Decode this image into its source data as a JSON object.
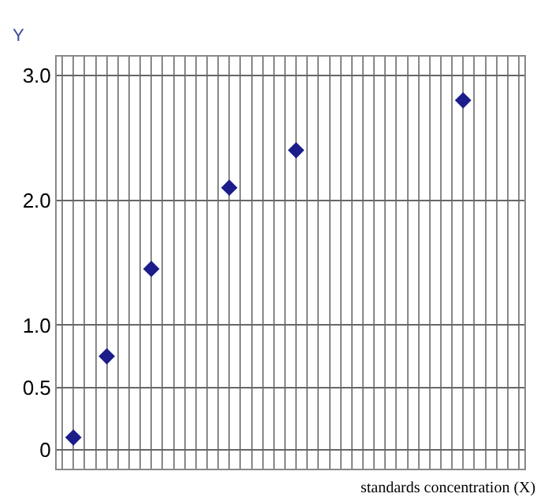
{
  "chart_data": {
    "type": "scatter",
    "xlabel": "standards concentration (X)",
    "ylabel": "Y",
    "categories": [
      null,
      null,
      null,
      null,
      null,
      null,
      null,
      null,
      null,
      null,
      null,
      null,
      null,
      null,
      null,
      null,
      null,
      null,
      null,
      null,
      null,
      null,
      null,
      null,
      null,
      null,
      null,
      null,
      null,
      null,
      null,
      null,
      null,
      null,
      null,
      null,
      null,
      null,
      null,
      null,
      null,
      null
    ],
    "series": [
      {
        "color": "#1c1c8a",
        "values": [
          null,
          0.1,
          null,
          null,
          0.75,
          null,
          null,
          null,
          1.45,
          null,
          null,
          null,
          null,
          null,
          null,
          2.1,
          null,
          null,
          null,
          null,
          null,
          2.4,
          null,
          null,
          null,
          null,
          null,
          null,
          null,
          null,
          null,
          null,
          null,
          null,
          null,
          null,
          2.8,
          null,
          null,
          null,
          null,
          null
        ]
      }
    ],
    "ylim": [
      -0.15,
      3.15
    ],
    "yticks": [
      0,
      0.5,
      {
        "value": 1,
        "label": "1.0"
      },
      {
        "value": 2,
        "label": "2.0"
      },
      {
        "value": 3,
        "label": "3.0"
      }
    ],
    "grid": true,
    "marker": "diamond"
  }
}
